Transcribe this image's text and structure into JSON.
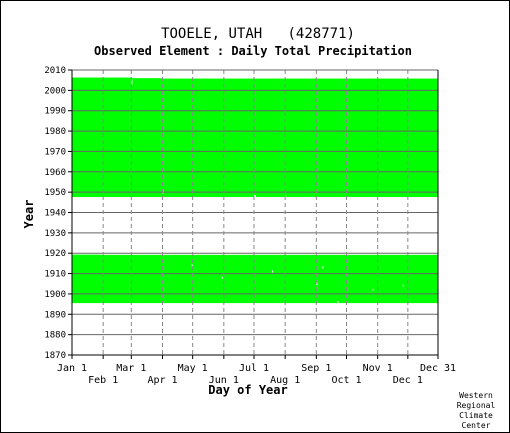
{
  "chart_data": {
    "type": "heatmap",
    "title": "TOOELE, UTAH   (428771)",
    "subtitle": "Observed Element : Daily Total Precipitation",
    "xlabel": "Day of Year",
    "ylabel": "Year",
    "xlim": [
      1,
      365
    ],
    "ylim": [
      1870,
      2010
    ],
    "y_ticks": [
      1870,
      1880,
      1890,
      1900,
      1910,
      1920,
      1930,
      1940,
      1950,
      1960,
      1970,
      1980,
      1990,
      2000,
      2010
    ],
    "x_ticks_top_row": [
      {
        "label": "Jan 1",
        "day": 1
      },
      {
        "label": "Mar 1",
        "day": 60
      },
      {
        "label": "May 1",
        "day": 121
      },
      {
        "label": "Jul 1",
        "day": 182
      },
      {
        "label": "Sep 1",
        "day": 244
      },
      {
        "label": "Nov 1",
        "day": 305
      },
      {
        "label": "Dec 31",
        "day": 365
      }
    ],
    "x_ticks_bottom_row": [
      {
        "label": "Feb 1",
        "day": 32
      },
      {
        "label": "Apr 1",
        "day": 91
      },
      {
        "label": "Jun 1",
        "day": 152
      },
      {
        "label": "Aug 1",
        "day": 213
      },
      {
        "label": "Oct 1",
        "day": 274
      },
      {
        "label": "Dec 1",
        "day": 335
      }
    ],
    "grid": true,
    "data_color": "#00ff00",
    "coverage_periods": [
      {
        "start_year": 1895.5,
        "end_year": 1919.2,
        "start_day": 1,
        "end_day": 365
      },
      {
        "start_year": 1947.6,
        "end_year": 2005.8,
        "start_day": 1,
        "end_day": 365
      }
    ],
    "coverage_edges": [
      {
        "from_day": 1,
        "to_day": 60,
        "top_year": 2006.3
      },
      {
        "from_day": 60,
        "to_day": 90,
        "top_year": 2006.0
      },
      {
        "from_day": 90,
        "to_day": 365,
        "top_year": 2005.2
      },
      {
        "from_day": 1,
        "to_day": 30,
        "upper_top_year": 1919.3
      }
    ]
  },
  "footer": {
    "credit_lines": [
      "Western",
      "Regional",
      "Climate",
      "Center"
    ]
  }
}
